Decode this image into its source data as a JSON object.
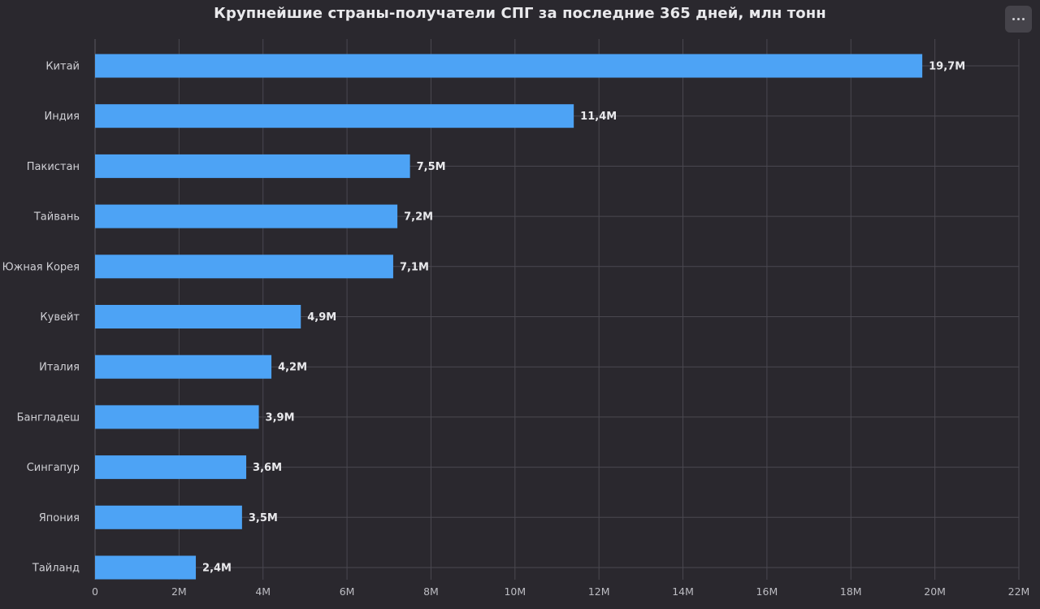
{
  "header": {
    "title": "Крупнейшие страны-получатели СПГ за последние 365 дней, млн тонн",
    "menu_icon": "more-horizontal-icon"
  },
  "colors": {
    "background": "#2a282e",
    "bar": "#4da3f5",
    "grid": "#4a4850",
    "text": "#cfcfd4"
  },
  "chart_data": {
    "type": "bar",
    "orientation": "horizontal",
    "title": "Крупнейшие страны-получатели СПГ за последние 365 дней, млн тонн",
    "xlabel": "",
    "ylabel": "",
    "categories": [
      "Китай",
      "Индия",
      "Пакистан",
      "Тайвань",
      "Южная Корея",
      "Кувейт",
      "Италия",
      "Бангладеш",
      "Сингапур",
      "Япония",
      "Тайланд"
    ],
    "values": [
      19.7,
      11.4,
      7.5,
      7.2,
      7.1,
      4.9,
      4.2,
      3.9,
      3.6,
      3.5,
      2.4
    ],
    "value_labels": [
      "19,7M",
      "11,4M",
      "7,5M",
      "7,2M",
      "7,1M",
      "4,9M",
      "4,2M",
      "3,9M",
      "3,6M",
      "3,5M",
      "2,4M"
    ],
    "xlim": [
      0,
      22
    ],
    "x_ticks": [
      0,
      2,
      4,
      6,
      8,
      10,
      12,
      14,
      16,
      18,
      20,
      22
    ],
    "x_tick_labels": [
      "0",
      "2M",
      "4M",
      "6M",
      "8M",
      "10M",
      "12M",
      "14M",
      "16M",
      "18M",
      "20M",
      "22M"
    ],
    "grid": true
  }
}
